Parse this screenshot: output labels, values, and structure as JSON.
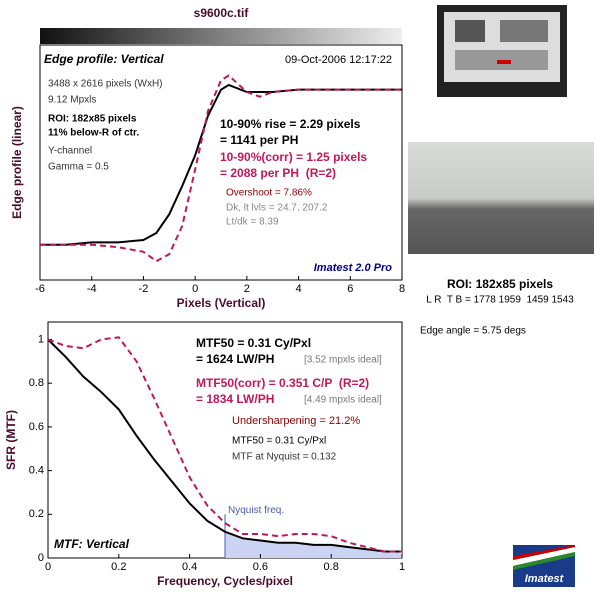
{
  "header": {
    "title": "s9600c.tif"
  },
  "side": {
    "roi": "ROI: 182x85 pixels",
    "coords": "L R  T B = 1778 1959  1459 1543",
    "edge_angle": "Edge angle = 5.75 degs",
    "logo": "Imatest"
  },
  "chart_data": [
    {
      "type": "line",
      "xlabel": "Pixels (Vertical)",
      "ylabel": "Edge profile (linear)",
      "xlim": [
        -6,
        8
      ],
      "xticks": [
        -6,
        -4,
        -2,
        0,
        2,
        4,
        6,
        8
      ],
      "ylim": [
        0,
        1
      ],
      "x": [
        -6,
        -5,
        -4,
        -3,
        -2,
        -1.5,
        -1,
        -0.5,
        0,
        0.5,
        1,
        1.3,
        2,
        2.5,
        3,
        4,
        5,
        6,
        7,
        8
      ],
      "series": [
        {
          "color": "#000000",
          "dash": false,
          "values": [
            0.15,
            0.15,
            0.16,
            0.16,
            0.17,
            0.2,
            0.28,
            0.4,
            0.53,
            0.7,
            0.81,
            0.83,
            0.8,
            0.8,
            0.8,
            0.81,
            0.81,
            0.81,
            0.81,
            0.81
          ]
        },
        {
          "color": "#c0185a",
          "dash": true,
          "values": [
            0.15,
            0.15,
            0.15,
            0.14,
            0.12,
            0.08,
            0.11,
            0.23,
            0.47,
            0.72,
            0.85,
            0.87,
            0.8,
            0.78,
            0.8,
            0.81,
            0.81,
            0.81,
            0.81,
            0.81
          ]
        }
      ],
      "annotations": [
        {
          "text": "Edge profile: Vertical",
          "color": "#000000"
        },
        {
          "text": "09-Oct-2006 12:17:22",
          "color": "#000000"
        },
        {
          "text": "3488 x 2616 pixels (WxH)",
          "color": "#333333"
        },
        {
          "text": "9.12 Mpxls",
          "color": "#333333"
        },
        {
          "text": "ROI: 182x85 pixels",
          "color": "#000000"
        },
        {
          "text": "11% below-R of ctr.",
          "color": "#000000"
        },
        {
          "text": "Y-channel",
          "color": "#333333"
        },
        {
          "text": "Gamma = 0.5",
          "color": "#333333"
        },
        {
          "text": "10-90% rise = 2.29 pixels",
          "color": "#000000"
        },
        {
          "text": "= 1141 per PH",
          "color": "#000000"
        },
        {
          "text": "10-90%(corr) = 1.25 pixels",
          "color": "#c0185a"
        },
        {
          "text": "= 2088 per PH  (R=2)",
          "color": "#c0185a"
        },
        {
          "text": "Overshoot = 7.86%",
          "color": "#8b0000"
        },
        {
          "text": "Dk, lt lvls = 24.7, 207.2",
          "color": "#888888"
        },
        {
          "text": "Lt/dk = 8.39",
          "color": "#888888"
        },
        {
          "text": "Imatest 2.0 Pro",
          "color": "#00008b"
        }
      ]
    },
    {
      "type": "line",
      "xlabel": "Frequency, Cycles/pixel",
      "ylabel": "SFR (MTF)",
      "xlim": [
        0,
        1
      ],
      "xticks": [
        0,
        0.2,
        0.4,
        0.6,
        0.8,
        1
      ],
      "ylim": [
        0,
        1.08
      ],
      "yticks": [
        0,
        0.2,
        0.4,
        0.6,
        0.8,
        1
      ],
      "nyquist": {
        "value": 0.5,
        "label": "Nyquist freq."
      },
      "x": [
        0,
        0.05,
        0.1,
        0.15,
        0.2,
        0.25,
        0.3,
        0.35,
        0.4,
        0.45,
        0.5,
        0.55,
        0.6,
        0.65,
        0.7,
        0.75,
        0.8,
        0.85,
        0.9,
        0.95,
        1
      ],
      "series": [
        {
          "color": "#000000",
          "dash": false,
          "values": [
            1,
            0.92,
            0.83,
            0.76,
            0.68,
            0.56,
            0.45,
            0.35,
            0.25,
            0.17,
            0.12,
            0.09,
            0.08,
            0.07,
            0.07,
            0.06,
            0.06,
            0.05,
            0.04,
            0.03,
            0.03
          ]
        },
        {
          "color": "#c0185a",
          "dash": true,
          "values": [
            1,
            0.97,
            0.96,
            1.0,
            1.01,
            0.9,
            0.73,
            0.55,
            0.37,
            0.24,
            0.16,
            0.11,
            0.11,
            0.1,
            0.11,
            0.11,
            0.1,
            0.07,
            0.05,
            0.03,
            0.03
          ]
        }
      ],
      "annotations": [
        {
          "text": "MTF50 = 0.31 Cy/Pxl",
          "color": "#000000"
        },
        {
          "text": "= 1624 LW/PH",
          "color": "#000000"
        },
        {
          "text": "[3.52 mpxls ideal]",
          "color": "#777777"
        },
        {
          "text": "MTF50(corr) = 0.351 C/P  (R=2)",
          "color": "#c0185a"
        },
        {
          "text": "= 1834 LW/PH",
          "color": "#c0185a"
        },
        {
          "text": "[4.49 mpxls ideal]",
          "color": "#777777"
        },
        {
          "text": "Undersharpening = 21.2%",
          "color": "#8b0000"
        },
        {
          "text": "MTF50 = 0.31 Cy/Pxl",
          "color": "#000000"
        },
        {
          "text": "MTF at Nyquist = 0.132",
          "color": "#333333"
        },
        {
          "text": "MTF: Vertical",
          "color": "#000000"
        }
      ]
    }
  ]
}
